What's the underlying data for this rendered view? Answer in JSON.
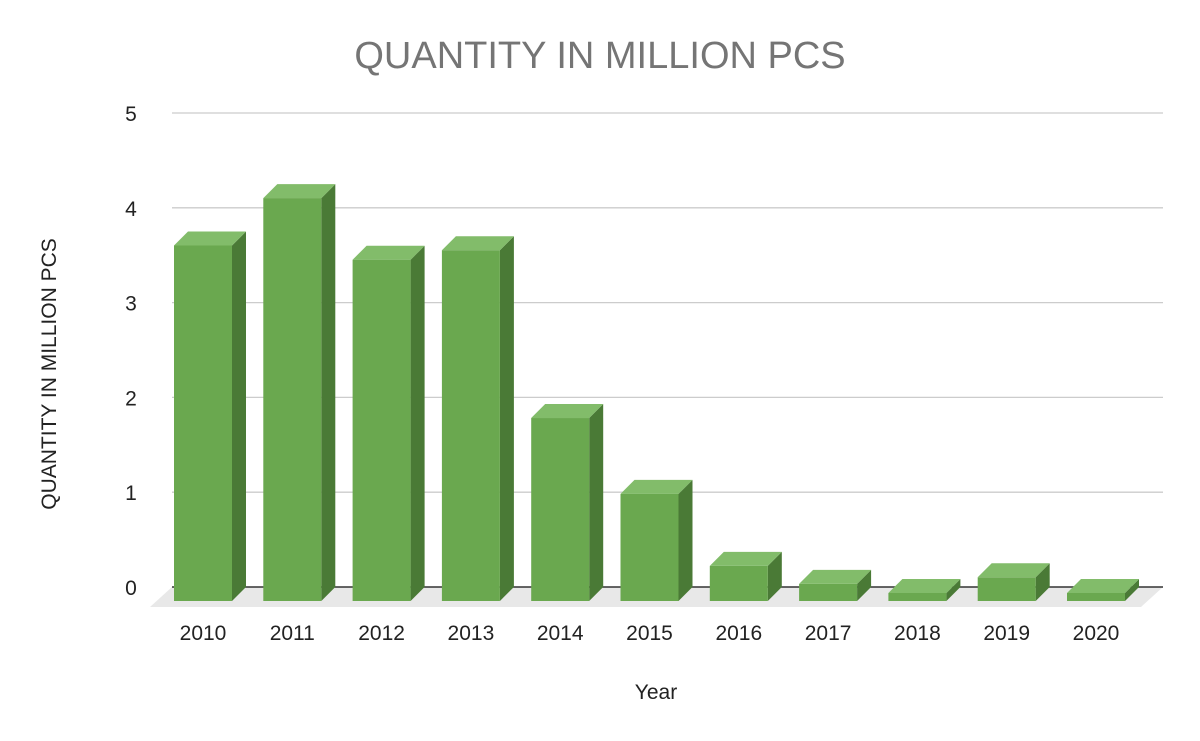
{
  "chart_data": {
    "type": "bar",
    "title": "QUANTITY IN MILLION PCS",
    "xlabel": "Year",
    "ylabel": "QUANTITY IN MILLION PCS",
    "categories": [
      "2010",
      "2011",
      "2012",
      "2013",
      "2014",
      "2015",
      "2016",
      "2017",
      "2018",
      "2019",
      "2020"
    ],
    "series": [
      {
        "values": [
          3.75,
          4.25,
          3.6,
          3.7,
          1.93,
          1.13,
          0.37,
          0.18,
          0.08,
          0.25,
          -0.06
        ]
      }
    ],
    "ylim": [
      0,
      5
    ],
    "yticks": [
      0,
      1,
      2,
      3,
      4,
      5
    ],
    "grid": true,
    "legend": "none",
    "style": "3d",
    "colors": {
      "bar_front": "#6aa84f",
      "bar_top": "#82bc6a",
      "bar_side": "#4a7a36"
    }
  }
}
